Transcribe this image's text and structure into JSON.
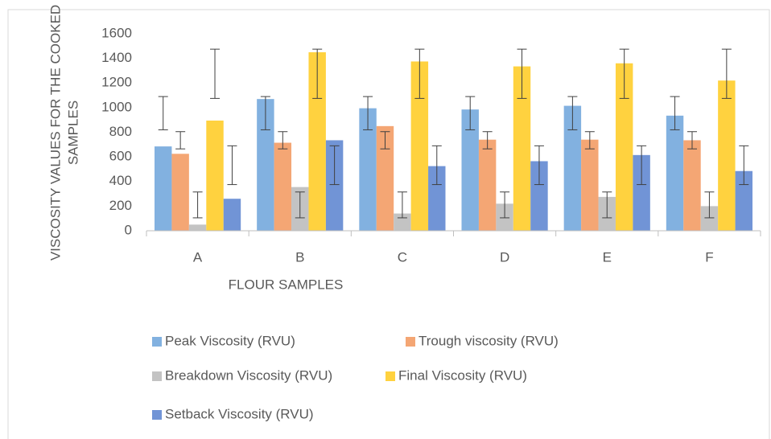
{
  "chart_data": {
    "type": "bar",
    "y_label": [
      "VISCOSITY VALUES FOR THE COOKED",
      "SAMPLES"
    ],
    "x_label": "FLOUR SAMPLES",
    "categories": [
      "A",
      "B",
      "C",
      "D",
      "E",
      "F"
    ],
    "series": [
      {
        "name": "Peak Viscosity (RVU)",
        "color": "#82b1e0",
        "values": [
          685,
          1070,
          995,
          985,
          1015,
          935
        ],
        "error_bars": [
          [
            820,
            1090
          ],
          [
            820,
            1090
          ],
          [
            820,
            1090
          ],
          [
            820,
            1090
          ],
          [
            820,
            1090
          ],
          [
            820,
            1090
          ]
        ]
      },
      {
        "name": "Trough viscosity (RVU)",
        "color": "#f4a674",
        "values": [
          625,
          715,
          850,
          740,
          740,
          735
        ],
        "error_bars": [
          [
            665,
            805
          ],
          [
            665,
            805
          ],
          [
            665,
            805
          ],
          [
            665,
            805
          ],
          [
            665,
            805
          ],
          [
            665,
            805
          ]
        ]
      },
      {
        "name": "Breakdown  Viscosity (RVU)",
        "color": "#c3c3c3",
        "values": [
          50,
          355,
          140,
          220,
          275,
          200
        ],
        "error_bars": [
          [
            105,
            315
          ],
          [
            105,
            315
          ],
          [
            105,
            315
          ],
          [
            105,
            315
          ],
          [
            105,
            315
          ],
          [
            105,
            315
          ]
        ]
      },
      {
        "name": "Final Viscosity (RVU)",
        "color": "#ffd23f",
        "values": [
          895,
          1450,
          1375,
          1335,
          1360,
          1220
        ],
        "error_bars": [
          [
            1075,
            1475
          ],
          [
            1075,
            1475
          ],
          [
            1075,
            1475
          ],
          [
            1075,
            1475
          ],
          [
            1075,
            1475
          ],
          [
            1075,
            1475
          ]
        ]
      },
      {
        "name": "Setback Viscosity (RVU)",
        "color": "#7194d6",
        "values": [
          260,
          735,
          525,
          565,
          615,
          485
        ],
        "error_bars": [
          [
            375,
            690
          ],
          [
            375,
            690
          ],
          [
            375,
            690
          ],
          [
            375,
            690
          ],
          [
            375,
            690
          ],
          [
            375,
            690
          ]
        ]
      }
    ],
    "ylim": [
      0,
      1600
    ],
    "yticks": [
      0,
      200,
      400,
      600,
      800,
      1000,
      1200,
      1400,
      1600
    ],
    "grid": false
  }
}
